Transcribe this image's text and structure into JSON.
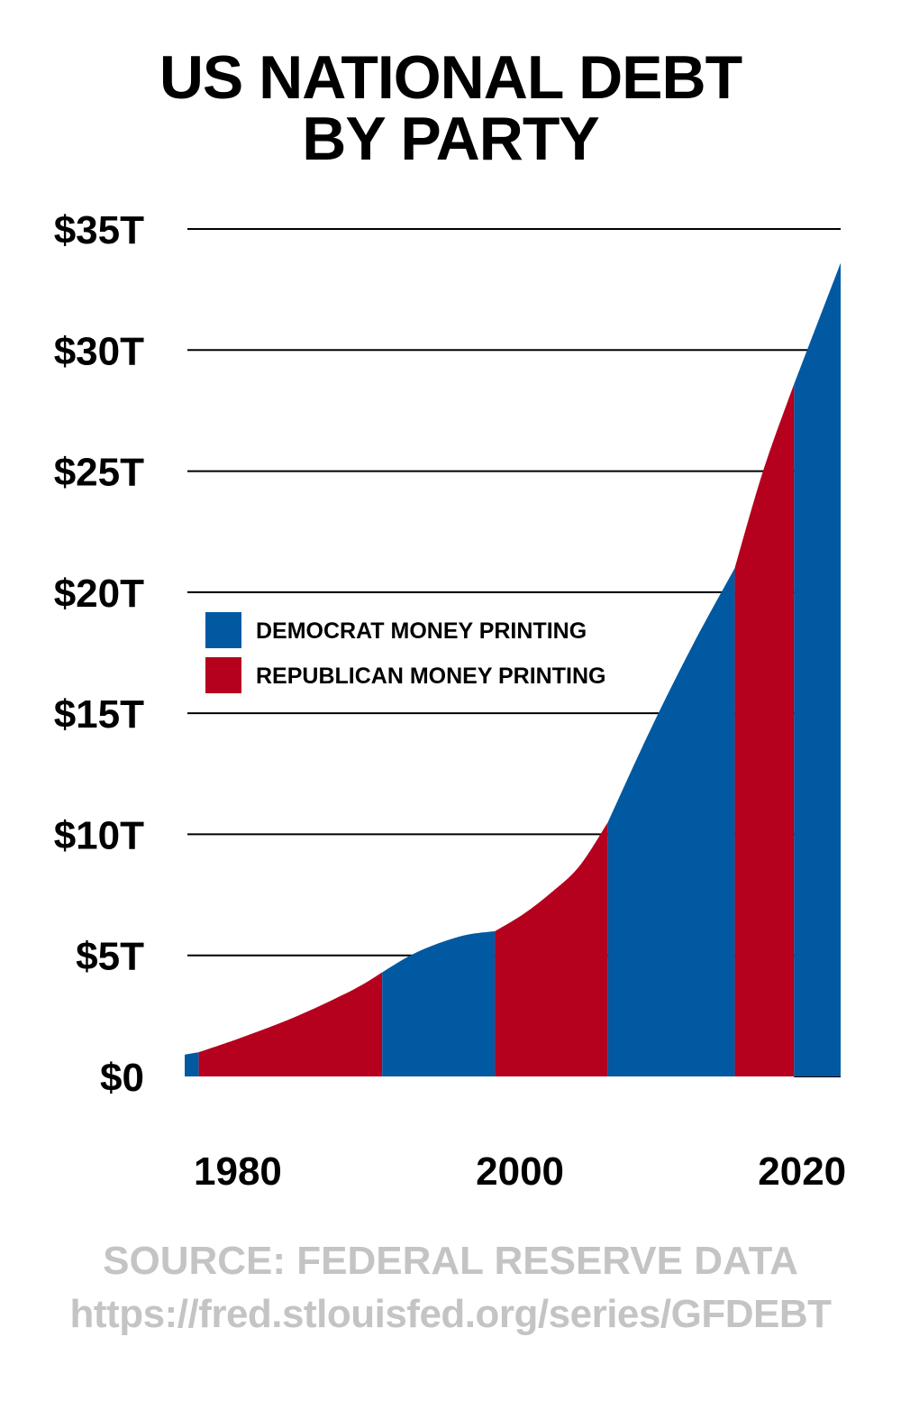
{
  "title_line_1": "US NATIONAL DEBT",
  "title_line_2": "BY PARTY",
  "source_line_1": "SOURCE: FEDERAL RESERVE DATA",
  "source_line_2": "https://fred.stlouisfed.org/series/GFDEBT",
  "chart_data": {
    "type": "area",
    "title": "US NATIONAL DEBT BY PARTY",
    "xlabel": "",
    "ylabel": "",
    "xlim": [
      1977,
      2023.5
    ],
    "ylim": [
      0,
      35
    ],
    "x_ticks": [
      {
        "value": 1980,
        "label": "1980"
      },
      {
        "value": 2000,
        "label": "2000"
      },
      {
        "value": 2020,
        "label": "2020"
      }
    ],
    "y_ticks": [
      {
        "value": 0,
        "label": "$0"
      },
      {
        "value": 5,
        "label": "$5T"
      },
      {
        "value": 10,
        "label": "$10T"
      },
      {
        "value": 15,
        "label": "$15T"
      },
      {
        "value": 20,
        "label": "$20T"
      },
      {
        "value": 25,
        "label": "$25T"
      },
      {
        "value": 30,
        "label": "$30T"
      },
      {
        "value": 35,
        "label": "$35T"
      }
    ],
    "grid": true,
    "legend_position": "middle-left",
    "colors": {
      "democrat": "#0059a1",
      "republican": "#b5001e"
    },
    "legend": [
      {
        "label": "DEMOCRAT MONEY PRINTING",
        "party": "democrat"
      },
      {
        "label": "REPUBLICAN MONEY PRINTING",
        "party": "republican"
      }
    ],
    "series": [
      {
        "party": "democrat",
        "points": [
          [
            1977,
            0.9
          ],
          [
            1978,
            1.0
          ]
        ]
      },
      {
        "party": "republican",
        "points": [
          [
            1978,
            1.0
          ],
          [
            1981,
            1.6
          ],
          [
            1985,
            2.5
          ],
          [
            1989,
            3.6
          ],
          [
            1991,
            4.3
          ]
        ]
      },
      {
        "party": "democrat",
        "points": [
          [
            1991,
            4.3
          ],
          [
            1993,
            5.0
          ],
          [
            1995,
            5.5
          ],
          [
            1997,
            5.85
          ],
          [
            1999,
            6.0
          ]
        ]
      },
      {
        "party": "republican",
        "points": [
          [
            1999,
            6.0
          ],
          [
            2001,
            6.7
          ],
          [
            2003,
            7.6
          ],
          [
            2005,
            8.7
          ],
          [
            2007,
            10.5
          ]
        ]
      },
      {
        "party": "democrat",
        "points": [
          [
            2007,
            10.5
          ],
          [
            2010,
            14.3
          ],
          [
            2013,
            17.8
          ],
          [
            2016,
            21.0
          ]
        ]
      },
      {
        "party": "republican",
        "points": [
          [
            2016,
            21.0
          ],
          [
            2018,
            25.0
          ],
          [
            2020.2,
            28.6
          ]
        ]
      },
      {
        "party": "democrat",
        "points": [
          [
            2020.2,
            28.6
          ],
          [
            2023.5,
            33.6
          ]
        ]
      }
    ]
  }
}
